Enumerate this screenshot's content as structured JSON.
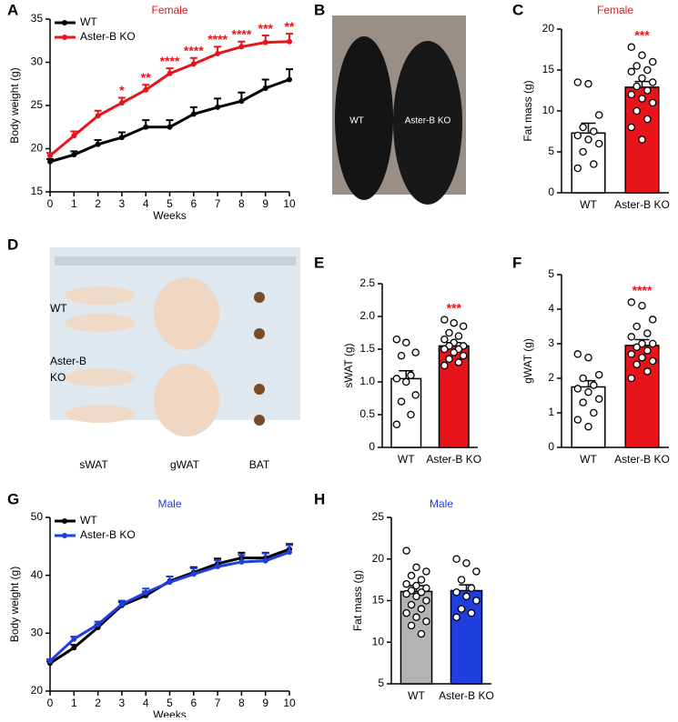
{
  "chart_data": [
    {
      "type": "line",
      "panel": "A",
      "title": "Female",
      "title_color": "#e8141b",
      "xlabel": "Weeks",
      "ylabel": "Body weight (g)",
      "x": [
        0,
        1,
        2,
        3,
        4,
        5,
        6,
        7,
        8,
        9,
        10
      ],
      "xlim": [
        0,
        10
      ],
      "xticks": [
        0,
        1,
        2,
        3,
        4,
        5,
        6,
        7,
        8,
        9,
        10
      ],
      "ylim": [
        15,
        35
      ],
      "yticks": [
        15,
        20,
        25,
        30,
        35
      ],
      "series": [
        {
          "name": "WT",
          "color": "#000000",
          "values": [
            18.5,
            19.3,
            20.5,
            21.3,
            22.5,
            22.5,
            24,
            24.8,
            25.5,
            27,
            28
          ],
          "errors": [
            0.3,
            0.4,
            0.5,
            0.6,
            0.8,
            0.8,
            0.8,
            1,
            1,
            1,
            1.2
          ]
        },
        {
          "name": "Aster-B KO",
          "color": "#e8141b",
          "values": [
            19.2,
            21.5,
            23.8,
            25.3,
            26.8,
            28.7,
            29.8,
            31,
            31.8,
            32.3,
            32.4
          ],
          "errors": [
            0.3,
            0.5,
            0.6,
            0.6,
            0.6,
            0.6,
            0.7,
            0.8,
            0.6,
            0.8,
            0.9
          ]
        }
      ],
      "annotations": [
        {
          "x": 3,
          "text": "*"
        },
        {
          "x": 4,
          "text": "**"
        },
        {
          "x": 5,
          "text": "****"
        },
        {
          "x": 6,
          "text": "****"
        },
        {
          "x": 7,
          "text": "****"
        },
        {
          "x": 8,
          "text": "****"
        },
        {
          "x": 9,
          "text": "***"
        },
        {
          "x": 10,
          "text": "**"
        }
      ]
    },
    {
      "type": "photo",
      "panel": "B",
      "labels": [
        "WT",
        "Aster-B KO"
      ]
    },
    {
      "type": "bar",
      "panel": "C",
      "title": "Female",
      "title_color": "#e8141b",
      "ylabel": "Fat mass (g)",
      "categories": [
        "WT",
        "Aster-B KO"
      ],
      "values": [
        7.3,
        12.9
      ],
      "errors": [
        1.2,
        0.7
      ],
      "colors": [
        "#ffffff",
        "#e8141b"
      ],
      "points": [
        [
          13.5,
          13.3,
          9.5,
          8,
          7.5,
          7,
          6.5,
          6,
          5,
          3.5,
          3
        ],
        [
          17.8,
          16.8,
          16,
          15.5,
          15,
          14.8,
          14,
          13.5,
          13,
          12.5,
          12,
          11.5,
          11,
          10,
          9,
          8,
          6.5
        ]
      ],
      "ylim": [
        0,
        20
      ],
      "yticks": [
        0,
        5,
        10,
        15,
        20
      ],
      "significance": "***"
    },
    {
      "type": "photo",
      "panel": "D",
      "labels": [
        "WT",
        "Aster-B",
        "KO",
        "sWAT",
        "gWAT",
        "BAT"
      ]
    },
    {
      "type": "bar",
      "panel": "E",
      "ylabel": "sWAT (g)",
      "categories": [
        "WT",
        "Aster-B KO"
      ],
      "values": [
        1.05,
        1.55
      ],
      "errors": [
        0.12,
        0.05
      ],
      "colors": [
        "#ffffff",
        "#e8141b"
      ],
      "points": [
        [
          1.65,
          1.6,
          1.45,
          1.4,
          1.1,
          1.05,
          1,
          0.8,
          0.7,
          0.5,
          0.35
        ],
        [
          1.95,
          1.9,
          1.85,
          1.75,
          1.7,
          1.65,
          1.6,
          1.55,
          1.55,
          1.5,
          1.5,
          1.45,
          1.4,
          1.35,
          1.3,
          1.25
        ]
      ],
      "ylim": [
        0,
        2.5
      ],
      "yticks": [
        0,
        0.5,
        {
          "value": 1,
          "label": "1.0"
        },
        1.5,
        {
          "value": 2,
          "label": "2.0"
        },
        2.5
      ],
      "significance": "***"
    },
    {
      "type": "bar",
      "panel": "F",
      "ylabel": "gWAT (g)",
      "categories": [
        "WT",
        "Aster-B KO"
      ],
      "values": [
        1.75,
        2.95
      ],
      "errors": [
        0.18,
        0.17
      ],
      "colors": [
        "#ffffff",
        "#e8141b"
      ],
      "points": [
        [
          2.7,
          2.6,
          2.1,
          2,
          1.8,
          1.7,
          1.6,
          1.4,
          1.3,
          1,
          0.8,
          0.6
        ],
        [
          4.2,
          4.1,
          3.7,
          3.5,
          3.3,
          3.2,
          3,
          3,
          2.9,
          2.8,
          2.7,
          2.6,
          2.5,
          2.4,
          2.2,
          2
        ]
      ],
      "ylim": [
        0,
        5
      ],
      "yticks": [
        0,
        1,
        2,
        3,
        4,
        5
      ],
      "significance": "****"
    },
    {
      "type": "line",
      "panel": "G",
      "title": "Male",
      "title_color": "#1f3fe0",
      "xlabel": "Weeks",
      "ylabel": "Body weight (g)",
      "x": [
        0,
        1,
        2,
        3,
        4,
        5,
        6,
        7,
        8,
        9,
        10
      ],
      "xlim": [
        0,
        10
      ],
      "xticks": [
        0,
        1,
        2,
        3,
        4,
        5,
        6,
        7,
        8,
        9,
        10
      ],
      "ylim": [
        20,
        50
      ],
      "yticks": [
        20,
        30,
        40,
        50
      ],
      "series": [
        {
          "name": "WT",
          "color": "#000000",
          "values": [
            24.8,
            27.5,
            31,
            34.8,
            36.5,
            39,
            40.5,
            42,
            43,
            43,
            44.5
          ],
          "errors": [
            0.3,
            0.5,
            0.5,
            0.6,
            0.7,
            0.8,
            0.9,
            0.9,
            0.9,
            0.9,
            0.9
          ]
        },
        {
          "name": "Aster-B KO",
          "color": "#1f3fe0",
          "values": [
            25.2,
            29,
            31.5,
            35,
            37,
            38.8,
            40.2,
            41.5,
            42.3,
            42.5,
            44
          ],
          "errors": [
            0.3,
            0.4,
            0.5,
            0.6,
            0.7,
            1,
            1,
            1.1,
            1.2,
            1.3,
            1.2
          ]
        }
      ],
      "annotations": []
    },
    {
      "type": "bar",
      "panel": "H",
      "title": "Male",
      "title_color": "#1f3fe0",
      "ylabel": "Fat mass (g)",
      "categories": [
        "WT",
        "Aster-B KO"
      ],
      "values": [
        16.1,
        16.2
      ],
      "errors": [
        0.7,
        0.7
      ],
      "colors": [
        "#b3b3b3",
        "#1f3fe0"
      ],
      "points": [
        [
          21,
          19,
          18.5,
          18,
          17.5,
          17,
          16.8,
          16.5,
          16.2,
          16,
          15.8,
          15.5,
          15,
          14.5,
          14,
          13.5,
          13,
          12.5,
          12,
          11
        ],
        [
          20,
          19.5,
          18.5,
          17.5,
          16.5,
          16,
          15.5,
          15,
          14,
          13.5,
          13
        ]
      ],
      "ylim": [
        5,
        25
      ],
      "yticks": [
        5,
        10,
        15,
        20,
        25
      ]
    }
  ]
}
